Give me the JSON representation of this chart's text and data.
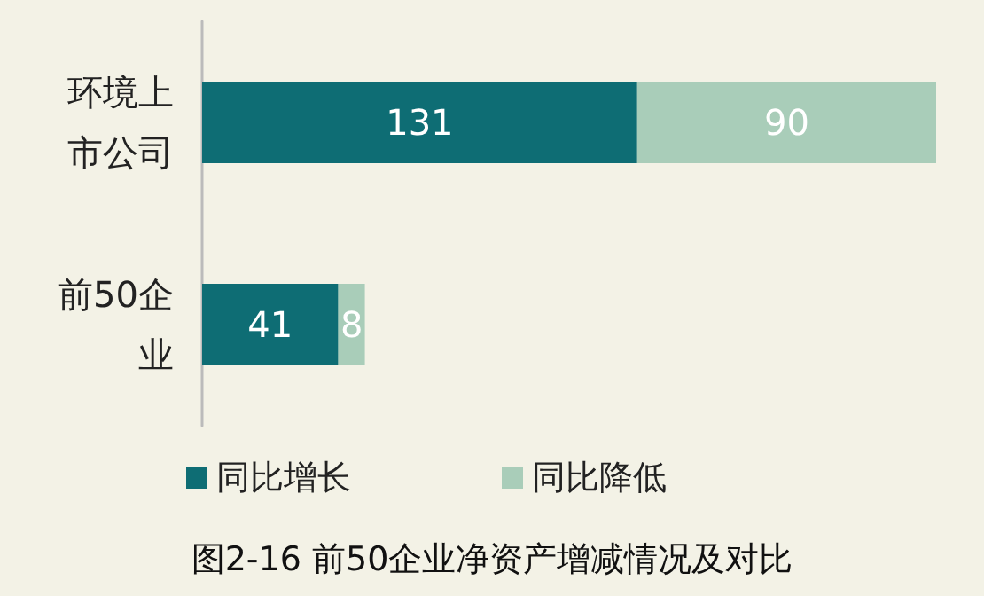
{
  "chart_data": {
    "type": "bar",
    "orientation": "horizontal",
    "stacked": true,
    "title": "图2-16 前50企业净资产增减情况及对比",
    "categories": [
      "环境上市公司",
      "前50企业"
    ],
    "series": [
      {
        "name": "同比增长",
        "color": "#0e6d74",
        "values": [
          131,
          41
        ]
      },
      {
        "name": "同比降低",
        "color": "#a9cdb9",
        "values": [
          90,
          8
        ]
      }
    ],
    "data_labels": true,
    "legend": "bottom left"
  }
}
